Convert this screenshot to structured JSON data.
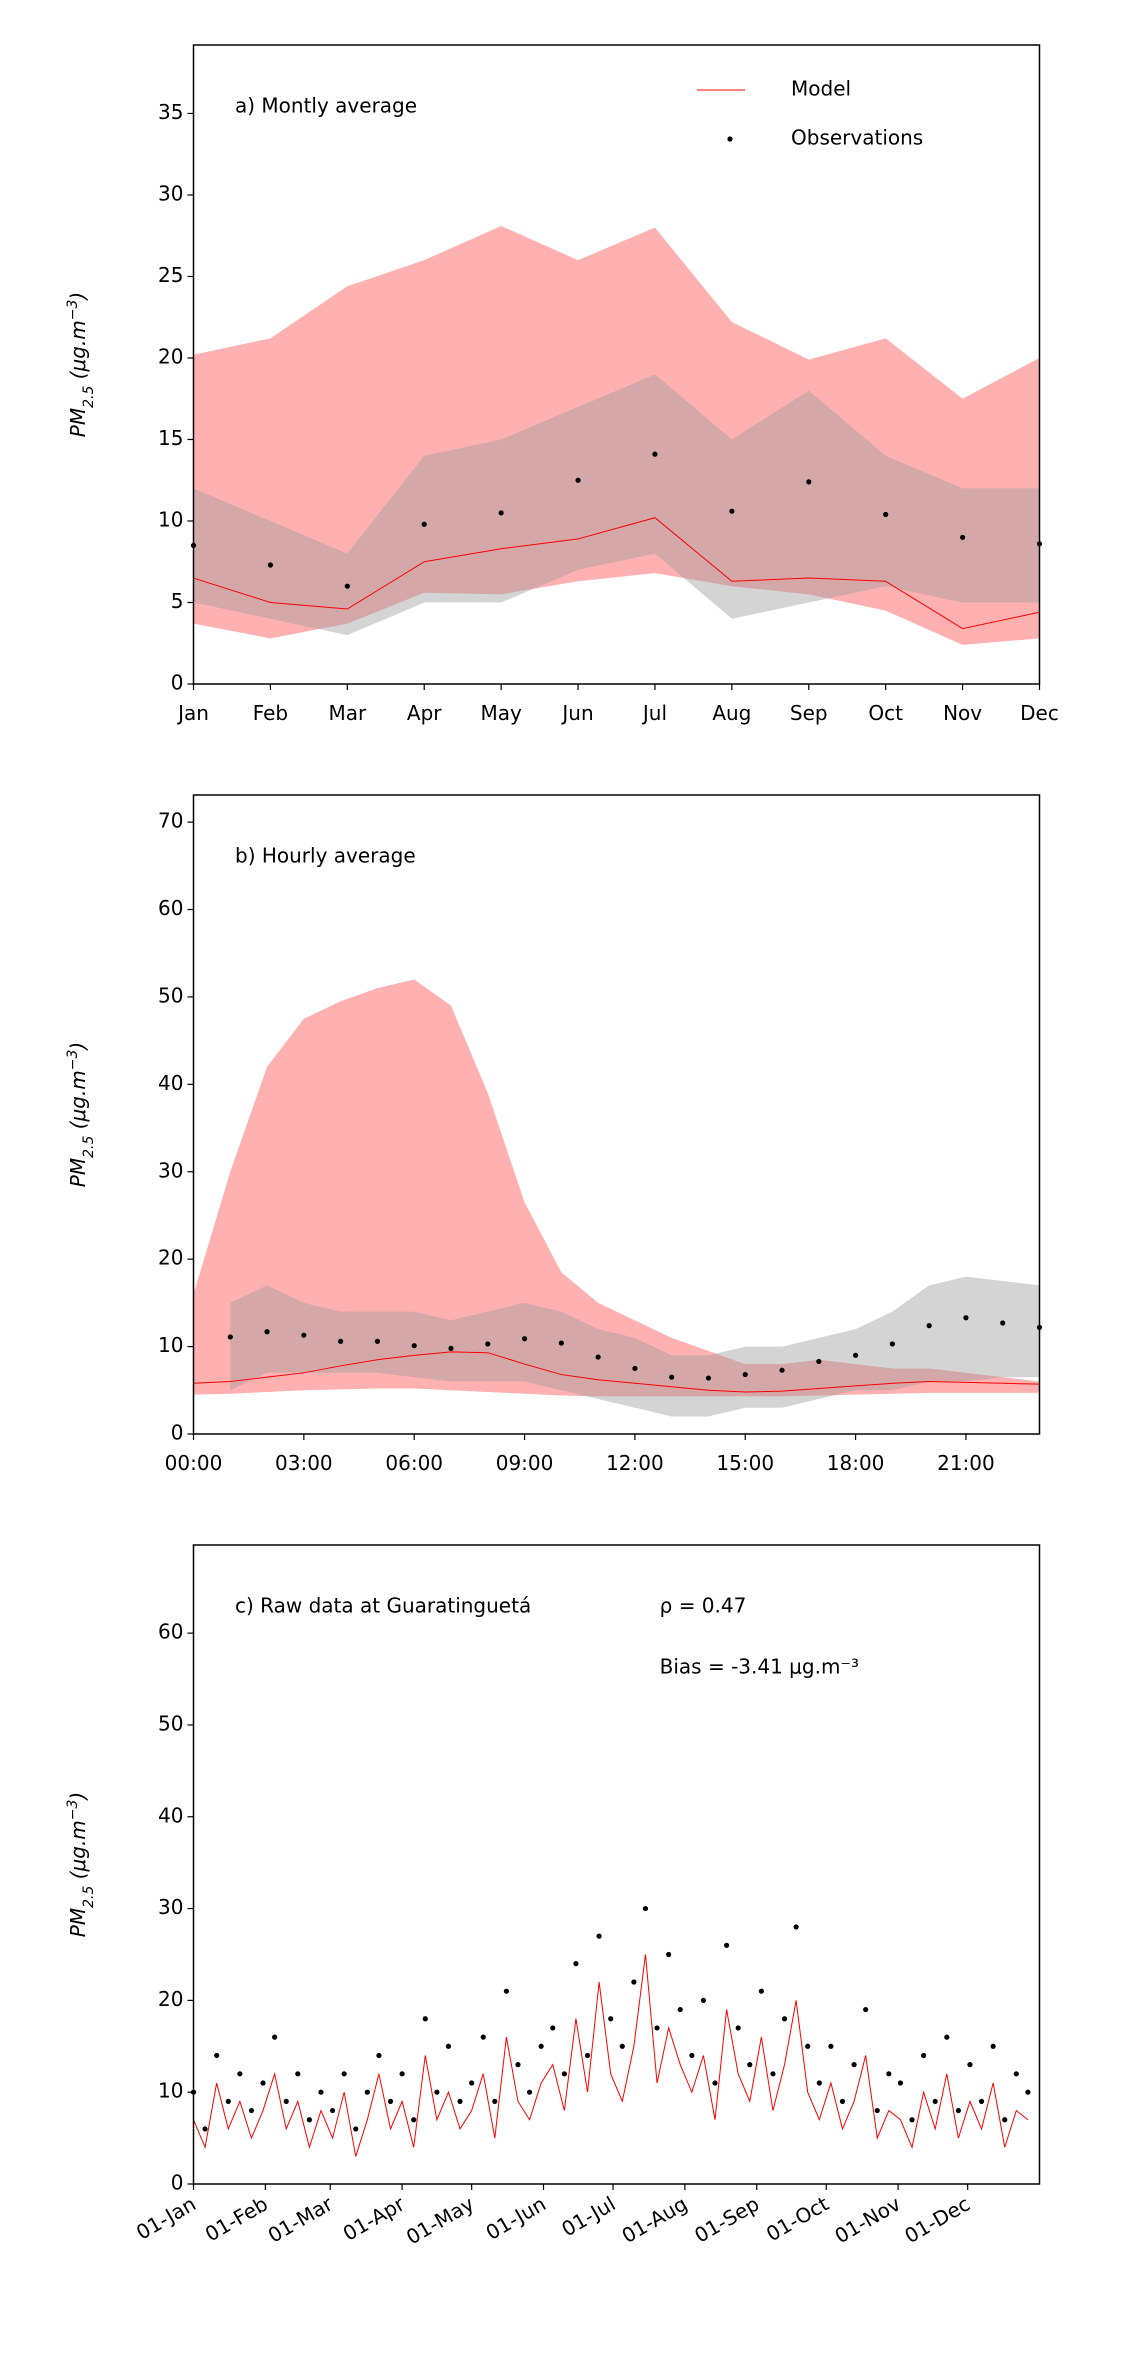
{
  "chart_data": [
    {
      "type": "line",
      "title": "a) Montly average",
      "legend": "upper right",
      "categories": [
        "Jan",
        "Feb",
        "Mar",
        "Apr",
        "May",
        "Jun",
        "Jul",
        "Aug",
        "Sep",
        "Oct",
        "Nov",
        "Dec"
      ],
      "ylim": [
        0,
        39.2
      ],
      "yticks": [
        0,
        5,
        10,
        15,
        20,
        25,
        30,
        35
      ],
      "ylabel": [
        {
          "text": "PM"
        },
        {
          "text": "2.5",
          "shift": "sub"
        },
        {
          "text": " (μg.m"
        },
        {
          "text": "−3",
          "shift": "super"
        },
        {
          "text": ")"
        }
      ],
      "bands": [
        {
          "color": "#ffb0b0",
          "opacity": 1,
          "upper": [
            20.2,
            21.2,
            24.4,
            26.0,
            28.1,
            26.0,
            28.0,
            22.2,
            19.9,
            21.2,
            17.5,
            20.0
          ],
          "lower": [
            3.7,
            2.8,
            3.7,
            5.6,
            5.5,
            6.3,
            6.8,
            6.0,
            5.5,
            4.5,
            2.4,
            2.8
          ]
        },
        {
          "color": "#a0a0a0",
          "opacity": 0.45,
          "upper": [
            12,
            10,
            8,
            14,
            15,
            17,
            19,
            15,
            18,
            14,
            12,
            12
          ],
          "lower": [
            5,
            4,
            3,
            5,
            5,
            7,
            8,
            4,
            5,
            6,
            5,
            5
          ]
        }
      ],
      "series": [
        {
          "name": "Model",
          "kind": "line",
          "color": "#ff0000",
          "values": [
            6.5,
            5.0,
            4.6,
            7.5,
            8.3,
            8.9,
            10.2,
            6.3,
            6.5,
            6.3,
            3.4,
            4.4
          ]
        },
        {
          "name": "Observations",
          "kind": "scatter",
          "color": "#000000",
          "values": [
            8.5,
            7.3,
            6.0,
            9.8,
            10.5,
            12.5,
            14.1,
            10.6,
            12.4,
            10.4,
            9.0,
            8.6
          ]
        }
      ]
    },
    {
      "type": "line",
      "title": "b) Hourly average",
      "x": [
        0,
        1,
        2,
        3,
        4,
        5,
        6,
        7,
        8,
        9,
        10,
        11,
        12,
        13,
        14,
        15,
        16,
        17,
        18,
        19,
        20,
        21,
        22,
        23
      ],
      "xlim": [
        0,
        23
      ],
      "xticks": [
        {
          "value": 0,
          "label": "00:00"
        },
        {
          "value": 3,
          "label": "03:00"
        },
        {
          "value": 6,
          "label": "06:00"
        },
        {
          "value": 9,
          "label": "09:00"
        },
        {
          "value": 12,
          "label": "12:00"
        },
        {
          "value": 15,
          "label": "15:00"
        },
        {
          "value": 18,
          "label": "18:00"
        },
        {
          "value": 21,
          "label": "21:00"
        }
      ],
      "ylim": [
        0,
        73.1
      ],
      "yticks": [
        0,
        10,
        20,
        30,
        40,
        50,
        60,
        70
      ],
      "ylabel": [
        {
          "text": "PM"
        },
        {
          "text": "2.5",
          "shift": "sub"
        },
        {
          "text": " (μg.m"
        },
        {
          "text": "−3",
          "shift": "super"
        },
        {
          "text": ")"
        }
      ],
      "bands": [
        {
          "color": "#ffb0b0",
          "opacity": 1,
          "upper": [
            16,
            30,
            42,
            47.5,
            49.5,
            51,
            52,
            49,
            39,
            26.5,
            18.5,
            15,
            13,
            11,
            9.5,
            8,
            8,
            8.5,
            8,
            7.5,
            7.5,
            7,
            6.5,
            6
          ],
          "lower": [
            4.5,
            4.6,
            4.8,
            5.0,
            5.1,
            5.2,
            5.2,
            5.0,
            4.8,
            4.6,
            4.4,
            4.3,
            4.3,
            4.3,
            4.3,
            4.3,
            4.3,
            4.4,
            4.5,
            4.6,
            4.7,
            4.7,
            4.7,
            4.7
          ]
        },
        {
          "color": "#a0a0a0",
          "opacity": 0.45,
          "upper": [
            null,
            15,
            17,
            15,
            14,
            14,
            14,
            13,
            14,
            15,
            14,
            12,
            11,
            9,
            9,
            10,
            10,
            11,
            12,
            14,
            17,
            18,
            17.5,
            17
          ],
          "lower": [
            null,
            5,
            7,
            7,
            7,
            7,
            6.5,
            6,
            6,
            6,
            5,
            4,
            3,
            2,
            2,
            3,
            3,
            4,
            5,
            5,
            6,
            6,
            6.5,
            6.5
          ]
        }
      ],
      "series": [
        {
          "kind": "line",
          "color": "#ff0000",
          "values": [
            5.8,
            6.0,
            6.5,
            7.0,
            7.8,
            8.5,
            9.0,
            9.4,
            9.3,
            8.0,
            6.8,
            6.2,
            5.8,
            5.4,
            5.0,
            4.8,
            4.9,
            5.2,
            5.5,
            5.8,
            6.0,
            5.9,
            5.8,
            5.7
          ]
        },
        {
          "kind": "scatter",
          "color": "#000000",
          "values": [
            null,
            11.1,
            11.7,
            11.3,
            10.6,
            10.6,
            10.1,
            9.8,
            10.3,
            10.9,
            10.4,
            8.8,
            7.5,
            6.5,
            6.4,
            6.8,
            7.3,
            8.3,
            9.0,
            10.3,
            12.4,
            13.3,
            12.7,
            12.2
          ]
        }
      ]
    },
    {
      "type": "line",
      "title": "c) Raw data at Guaratinguetá",
      "annotations": [
        "ρ = 0.47",
        "Bias = -3.41 μg.m⁻³"
      ],
      "x": [
        "01-Jan",
        "06-Jan",
        "11-Jan",
        "16-Jan",
        "21-Jan",
        "26-Jan",
        "31-Jan",
        "05-Feb",
        "10-Feb",
        "15-Feb",
        "20-Feb",
        "25-Feb",
        "02-Mar",
        "07-Mar",
        "12-Mar",
        "17-Mar",
        "22-Mar",
        "27-Mar",
        "01-Apr",
        "06-Apr",
        "11-Apr",
        "16-Apr",
        "21-Apr",
        "26-Apr",
        "01-May",
        "06-May",
        "11-May",
        "16-May",
        "21-May",
        "26-May",
        "31-May",
        "05-Jun",
        "10-Jun",
        "15-Jun",
        "20-Jun",
        "25-Jun",
        "30-Jun",
        "05-Jul",
        "10-Jul",
        "15-Jul",
        "20-Jul",
        "25-Jul",
        "30-Jul",
        "04-Aug",
        "09-Aug",
        "14-Aug",
        "19-Aug",
        "24-Aug",
        "29-Aug",
        "03-Sep",
        "08-Sep",
        "13-Sep",
        "18-Sep",
        "23-Sep",
        "28-Sep",
        "03-Oct",
        "08-Oct",
        "13-Oct",
        "18-Oct",
        "23-Oct",
        "28-Oct",
        "02-Nov",
        "07-Nov",
        "12-Nov",
        "17-Nov",
        "22-Nov",
        "27-Nov",
        "02-Dec",
        "07-Dec",
        "12-Dec",
        "17-Dec",
        "22-Dec",
        "27-Dec"
      ],
      "xlim": [
        0,
        365
      ],
      "xticks": [
        {
          "value": 0,
          "label": "01-Jan"
        },
        {
          "value": 31,
          "label": "01-Feb"
        },
        {
          "value": 59,
          "label": "01-Mar"
        },
        {
          "value": 90,
          "label": "01-Apr"
        },
        {
          "value": 120,
          "label": "01-May"
        },
        {
          "value": 151,
          "label": "01-Jun"
        },
        {
          "value": 181,
          "label": "01-Jul"
        },
        {
          "value": 212,
          "label": "01-Aug"
        },
        {
          "value": 243,
          "label": "01-Sep"
        },
        {
          "value": 273,
          "label": "01-Oct"
        },
        {
          "value": 304,
          "label": "01-Nov"
        },
        {
          "value": 334,
          "label": "01-Dec"
        }
      ],
      "ylim": [
        0,
        69.6
      ],
      "yticks": [
        0,
        10,
        20,
        30,
        40,
        50,
        60
      ],
      "ylabel": [
        {
          "text": "PM"
        },
        {
          "text": "2.5",
          "shift": "sub"
        },
        {
          "text": " (μg.m"
        },
        {
          "text": "−3",
          "shift": "super"
        },
        {
          "text": ")"
        }
      ],
      "bands": [],
      "series": [
        {
          "kind": "line",
          "color": "#ff0000",
          "values": [
            7,
            4,
            11,
            6,
            9,
            5,
            8,
            12,
            6,
            9,
            4,
            8,
            5,
            10,
            3,
            7,
            12,
            6,
            9,
            4,
            14,
            7,
            10,
            6,
            8,
            12,
            5,
            16,
            9,
            7,
            11,
            13,
            8,
            18,
            10,
            22,
            12,
            9,
            15,
            25,
            11,
            17,
            13,
            10,
            14,
            7,
            19,
            12,
            9,
            16,
            8,
            13,
            20,
            10,
            7,
            11,
            6,
            9,
            14,
            5,
            8,
            7,
            4,
            10,
            6,
            12,
            5,
            9,
            6,
            11,
            4,
            8,
            7
          ]
        },
        {
          "kind": "scatter",
          "color": "#000000",
          "values": [
            10,
            6,
            14,
            9,
            12,
            8,
            11,
            16,
            9,
            12,
            7,
            10,
            8,
            12,
            6,
            10,
            14,
            9,
            12,
            7,
            18,
            10,
            15,
            9,
            11,
            16,
            9,
            21,
            13,
            10,
            15,
            17,
            12,
            24,
            14,
            27,
            18,
            15,
            22,
            30,
            17,
            25,
            19,
            14,
            20,
            11,
            26,
            17,
            13,
            21,
            12,
            18,
            28,
            15,
            11,
            15,
            9,
            13,
            19,
            8,
            12,
            11,
            7,
            14,
            9,
            16,
            8,
            13,
            9,
            15,
            7,
            12,
            10
          ]
        }
      ]
    }
  ]
}
